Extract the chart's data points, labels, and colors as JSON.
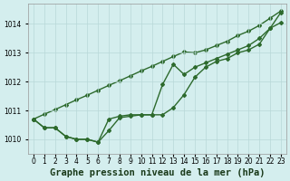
{
  "x": [
    0,
    1,
    2,
    3,
    4,
    5,
    6,
    7,
    8,
    9,
    10,
    11,
    12,
    13,
    14,
    15,
    16,
    17,
    18,
    19,
    20,
    21,
    22,
    23
  ],
  "line1": [
    1010.7,
    1010.4,
    1010.4,
    1010.1,
    1010.0,
    1010.0,
    1009.9,
    1010.7,
    1010.8,
    1010.85,
    1010.85,
    1010.85,
    1010.85,
    1011.1,
    1011.55,
    1012.15,
    1012.5,
    1012.7,
    1012.8,
    1013.0,
    1013.1,
    1013.3,
    1013.85,
    1014.05
  ],
  "line2": [
    1010.7,
    1010.4,
    1010.4,
    1010.1,
    1010.0,
    1010.0,
    1009.9,
    1010.3,
    1010.75,
    1010.8,
    1010.85,
    1010.85,
    1011.9,
    1012.6,
    1012.25,
    1012.5,
    1012.65,
    1012.8,
    1012.95,
    1013.1,
    1013.25,
    1013.5,
    1013.85,
    1014.4
  ],
  "line3": [
    1010.7,
    1010.87,
    1011.03,
    1011.2,
    1011.37,
    1011.53,
    1011.7,
    1011.87,
    1012.03,
    1012.2,
    1012.37,
    1012.53,
    1012.7,
    1012.87,
    1013.03,
    1013.0,
    1013.1,
    1013.25,
    1013.4,
    1013.6,
    1013.75,
    1013.95,
    1014.2,
    1014.45
  ],
  "line_color": "#2d6a2d",
  "bg_color": "#d4eeee",
  "grid_color": "#b8d8d8",
  "title": "Graphe pression niveau de la mer (hPa)",
  "ylabel_ticks": [
    1010,
    1011,
    1012,
    1013,
    1014
  ],
  "xlabel_ticks": [
    0,
    1,
    2,
    3,
    4,
    5,
    6,
    7,
    8,
    9,
    10,
    11,
    12,
    13,
    14,
    15,
    16,
    17,
    18,
    19,
    20,
    21,
    22,
    23
  ],
  "ylim": [
    1009.5,
    1014.7
  ],
  "xlim": [
    -0.5,
    23.5
  ],
  "title_fontsize": 7.5,
  "tick_fontsize": 5.5,
  "line_width": 1.0,
  "marker": "D",
  "marker_size": 2.0
}
